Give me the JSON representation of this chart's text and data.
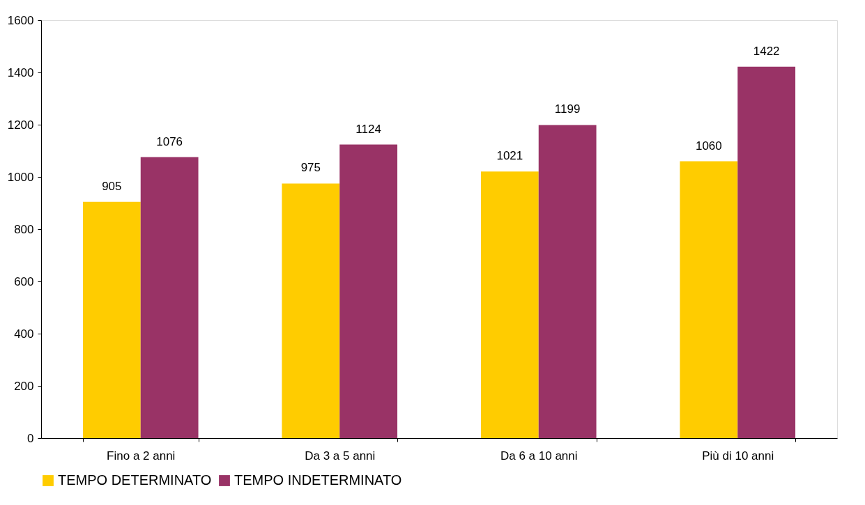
{
  "chart_data": {
    "type": "bar",
    "categories": [
      "Fino a 2 anni",
      "Da 3 a 5 anni",
      "Da 6 a 10 anni",
      "Più di 10 anni"
    ],
    "series": [
      {
        "name": "TEMPO DETERMINATO",
        "color": "#ffcc00",
        "values": [
          905,
          975,
          1021,
          1060
        ]
      },
      {
        "name": "TEMPO INDETERMINATO",
        "color": "#993366",
        "values": [
          1076,
          1124,
          1199,
          1422
        ]
      }
    ],
    "ylim": [
      0,
      1600
    ],
    "yticks": [
      0,
      200,
      400,
      600,
      800,
      1000,
      1200,
      1400,
      1600
    ],
    "data_labels": true,
    "grid": false,
    "legend": "bottom"
  }
}
